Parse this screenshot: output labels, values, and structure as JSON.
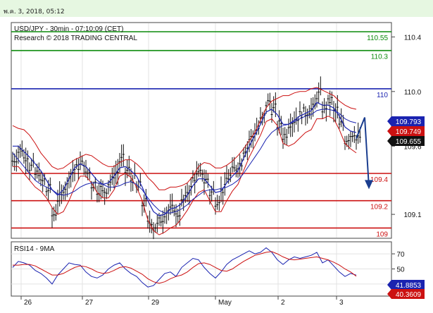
{
  "header": {
    "timestamp": "พ.ค. 3, 2018, 05:12"
  },
  "chart_data": [
    {
      "type": "line",
      "title": "USD/JPY - 30min - 07:10:09 (CET)",
      "subtitle": "Research © 2018 TRADING CENTRAL",
      "x_labels": [
        "26",
        "27",
        "29",
        "May",
        "2",
        "3"
      ],
      "ylim": [
        108.93,
        110.5
      ],
      "y_ticks": [
        "110.4",
        "110.0",
        "109.6",
        "109.1"
      ],
      "levels": [
        {
          "label": "110.55",
          "value": 110.55,
          "color": "#0a8a0a"
        },
        {
          "label": "110.3",
          "value": 110.3,
          "color": "#0a8a0a"
        },
        {
          "label": "110",
          "value": 110.02,
          "color": "#1a23b0"
        },
        {
          "label": "109.4",
          "value": 109.4,
          "color": "#cc1111"
        },
        {
          "label": "109.2",
          "value": 109.2,
          "color": "#cc1111"
        },
        {
          "label": "109",
          "value": 109.0,
          "color": "#cc1111"
        }
      ],
      "price_tags": [
        {
          "label": "109.793",
          "value": 109.793,
          "bg": "#1a23b0",
          "fg": "#ffffff"
        },
        {
          "label": "109.749",
          "value": 109.749,
          "bg": "#cc1111",
          "fg": "#ffffff"
        },
        {
          "label": "109.655",
          "value": 109.655,
          "bg": "#111111",
          "fg": "#ffffff"
        }
      ],
      "series": [
        {
          "values": [
            109.5,
            109.57,
            109.52,
            109.45,
            109.4,
            109.34,
            109.28,
            109.1,
            109.22,
            109.3,
            109.4,
            109.44,
            109.47,
            109.4,
            109.32,
            109.28,
            109.27,
            109.34,
            109.4,
            109.5,
            109.42,
            109.36,
            109.3,
            109.18,
            109.04,
            109.01,
            109.06,
            109.12,
            109.14,
            109.1,
            109.2,
            109.28,
            109.37,
            109.4,
            109.35,
            109.26,
            109.2,
            109.28,
            109.37,
            109.43,
            109.47,
            109.58,
            109.66,
            109.72,
            109.8,
            109.92,
            109.87,
            109.76,
            109.68,
            109.77,
            109.8,
            109.84,
            109.85,
            109.88,
            109.98,
            109.88,
            109.93,
            109.86,
            109.76,
            109.65,
            109.69,
            109.655
          ]
        },
        {
          "values": [
            109.6,
            109.6,
            109.56,
            109.52,
            109.47,
            109.42,
            109.35,
            109.28,
            109.24,
            109.28,
            109.36,
            109.44,
            109.47,
            109.45,
            109.4,
            109.35,
            109.32,
            109.33,
            109.38,
            109.44,
            109.45,
            109.42,
            109.38,
            109.3,
            109.2,
            109.12,
            109.09,
            109.1,
            109.14,
            109.15,
            109.18,
            109.24,
            109.31,
            109.36,
            109.36,
            109.31,
            109.26,
            109.27,
            109.33,
            109.38,
            109.42,
            109.51,
            109.6,
            109.68,
            109.76,
            109.85,
            109.87,
            109.83,
            109.76,
            109.76,
            109.79,
            109.82,
            109.84,
            109.86,
            109.92,
            109.9,
            109.9,
            109.88,
            109.82,
            109.74,
            109.71,
            109.7
          ]
        },
        {
          "values": [
            109.75,
            109.73,
            109.72,
            109.68,
            109.62,
            109.55,
            109.5,
            109.45,
            109.43,
            109.44,
            109.47,
            109.5,
            109.52,
            109.54,
            109.53,
            109.5,
            109.47,
            109.45,
            109.45,
            109.48,
            109.5,
            109.5,
            109.47,
            109.43,
            109.37,
            109.33,
            109.28,
            109.28,
            109.3,
            109.3,
            109.31,
            109.33,
            109.38,
            109.45,
            109.48,
            109.47,
            109.44,
            109.44,
            109.46,
            109.49,
            109.53,
            109.58,
            109.64,
            109.7,
            109.79,
            109.88,
            109.93,
            109.95,
            109.97,
            109.97,
            109.99,
            110.0,
            110.0,
            110.02,
            110.03,
            110.01,
            109.99,
            109.97,
            109.93,
            109.9,
            109.88,
            109.87
          ]
        },
        {
          "values": [
            109.45,
            109.45,
            109.4,
            109.35,
            109.3,
            109.27,
            109.22,
            109.15,
            109.1,
            109.12,
            109.2,
            109.3,
            109.38,
            109.38,
            109.33,
            109.26,
            109.22,
            109.22,
            109.28,
            109.38,
            109.4,
            109.37,
            109.3,
            109.2,
            109.06,
            108.98,
            108.95,
            108.97,
            109.0,
            109.02,
            109.07,
            109.13,
            109.2,
            109.26,
            109.28,
            109.2,
            109.12,
            109.12,
            109.2,
            109.27,
            109.32,
            109.42,
            109.52,
            109.6,
            109.68,
            109.78,
            109.8,
            109.75,
            109.62,
            109.6,
            109.62,
            109.66,
            109.7,
            109.72,
            109.8,
            109.8,
            109.82,
            109.8,
            109.72,
            109.62,
            109.58,
            109.55
          ]
        },
        {
          "values": [
            109.55,
            109.5,
            109.45,
            109.4,
            109.35,
            109.32,
            109.3,
            109.28,
            109.25,
            109.24,
            109.25,
            109.27,
            109.3,
            109.32,
            109.33,
            109.33,
            109.32,
            109.3,
            109.3,
            109.31,
            109.33,
            109.34,
            109.32,
            109.28,
            109.22,
            109.17,
            109.13,
            109.11,
            109.11,
            109.12,
            109.14,
            109.17,
            109.21,
            109.24,
            109.27,
            109.28,
            109.28,
            109.29,
            109.3,
            109.32,
            109.35,
            109.4,
            109.46,
            109.52,
            109.58,
            109.65,
            109.7,
            109.73,
            109.75,
            109.76,
            109.78,
            109.8,
            109.82,
            109.83,
            109.86,
            109.87,
            109.87,
            109.86,
            109.84,
            109.8,
            109.78,
            109.77
          ]
        }
      ],
      "forecast_path": [
        [
          109.655,
          0
        ],
        [
          109.81,
          1
        ],
        [
          109.3,
          2
        ]
      ]
    },
    {
      "type": "line",
      "title": "RSI14 - 9MA",
      "ylim": [
        15,
        85
      ],
      "y_ticks": [
        "70",
        "50",
        "30"
      ],
      "price_tags": [
        {
          "label": "41.8853",
          "value": 41.8853,
          "bg": "#1a23b0",
          "fg": "#ffffff"
        },
        {
          "label": "40.3609",
          "value": 40.3609,
          "bg": "#cc1111",
          "fg": "#ffffff"
        }
      ],
      "series": [
        {
          "values": [
            52,
            60,
            58,
            55,
            48,
            44,
            38,
            30,
            42,
            50,
            58,
            56,
            55,
            46,
            40,
            38,
            42,
            50,
            55,
            58,
            50,
            44,
            40,
            32,
            26,
            28,
            36,
            44,
            46,
            40,
            52,
            58,
            64,
            62,
            52,
            44,
            38,
            46,
            56,
            62,
            66,
            70,
            74,
            70,
            72,
            78,
            72,
            62,
            56,
            62,
            66,
            64,
            66,
            68,
            72,
            58,
            62,
            54,
            46,
            40,
            44,
            41.8853
          ]
        },
        {
          "values": [
            55,
            55,
            56,
            56,
            54,
            50,
            46,
            42,
            42,
            44,
            48,
            52,
            54,
            53,
            50,
            46,
            44,
            45,
            48,
            52,
            53,
            51,
            47,
            43,
            37,
            33,
            31,
            33,
            37,
            40,
            42,
            46,
            52,
            57,
            58,
            56,
            52,
            48,
            47,
            50,
            55,
            60,
            64,
            68,
            70,
            72,
            73,
            70,
            66,
            63,
            62,
            63,
            64,
            65,
            66,
            64,
            62,
            59,
            55,
            50,
            46,
            40.3609
          ]
        }
      ]
    }
  ]
}
